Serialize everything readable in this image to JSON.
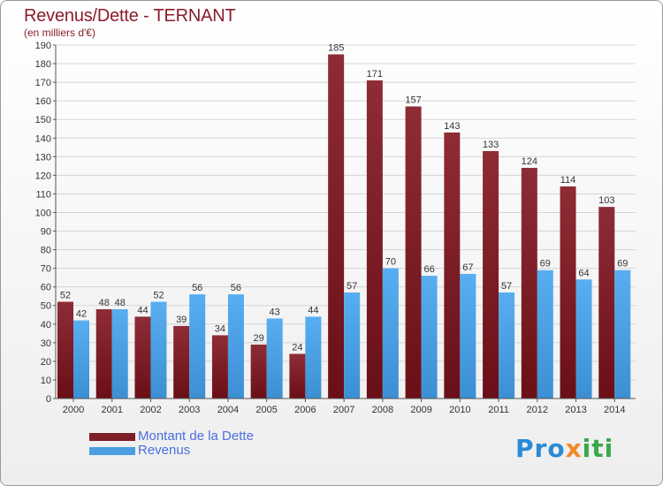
{
  "title": "Revenus/Dette - TERNANT",
  "subtitle": "(en milliers d'€)",
  "brand": "Proxiti",
  "colors": {
    "debt": "#7e1f28",
    "revenue": "#4a9fe2"
  },
  "chart_data": {
    "type": "bar",
    "categories": [
      "2000",
      "2001",
      "2002",
      "2003",
      "2004",
      "2005",
      "2006",
      "2007",
      "2008",
      "2009",
      "2010",
      "2011",
      "2012",
      "2013",
      "2014"
    ],
    "series": [
      {
        "name": "Montant de la Dette",
        "values": [
          52,
          48,
          44,
          39,
          34,
          29,
          24,
          185,
          171,
          157,
          143,
          133,
          124,
          114,
          103
        ]
      },
      {
        "name": "Revenus",
        "values": [
          42,
          48,
          52,
          56,
          56,
          43,
          44,
          57,
          70,
          66,
          67,
          57,
          69,
          64,
          69
        ]
      }
    ],
    "ylim": [
      0,
      190
    ],
    "yticks": [
      0,
      10,
      20,
      30,
      40,
      50,
      60,
      70,
      80,
      90,
      100,
      110,
      120,
      130,
      140,
      150,
      160,
      170,
      180,
      190
    ],
    "grid": true,
    "legend": "bottom-left"
  }
}
